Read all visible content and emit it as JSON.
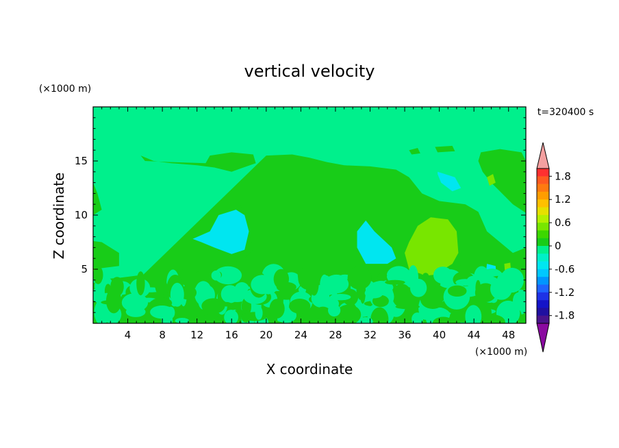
{
  "chart_data": {
    "type": "heatmap",
    "title": "vertical velocity",
    "xlabel": "X coordinate",
    "ylabel": "Z coordinate",
    "x_unit": "(×1000 m)",
    "y_unit": "(×1000 m)",
    "time_label": "t=320400 s",
    "xlim": [
      0,
      50
    ],
    "ylim": [
      0,
      20
    ],
    "x_ticks": [
      4,
      8,
      12,
      16,
      20,
      24,
      28,
      32,
      36,
      40,
      44,
      48
    ],
    "y_ticks": [
      5,
      10,
      15
    ],
    "colorbar": {
      "levels": [
        -2.0,
        -1.8,
        -1.6,
        -1.4,
        -1.2,
        -1.0,
        -0.8,
        -0.6,
        -0.4,
        -0.2,
        0,
        0.2,
        0.4,
        0.6,
        0.8,
        1.0,
        1.2,
        1.4,
        1.6,
        1.8,
        2.0
      ],
      "labels": [
        "1.8",
        "1.2",
        "0.6",
        "0",
        "-0.6",
        "-1.2",
        "-1.8"
      ],
      "label_values": [
        1.8,
        1.2,
        0.6,
        0,
        -0.6,
        -1.2,
        -1.8
      ],
      "colors_high_to_low": [
        "#ff3030",
        "#ff5a20",
        "#ff7a10",
        "#ff9d00",
        "#ffc000",
        "#e6e000",
        "#b4f000",
        "#78e600",
        "#3cd700",
        "#18cc18",
        "#00f08c",
        "#00f0c8",
        "#00e6f0",
        "#00c8ff",
        "#0096ff",
        "#1e64ff",
        "#1e32e6",
        "#1414c8",
        "#2010a0",
        "#4a148c"
      ],
      "over_color": "#f4a0a0",
      "under_color": "#8a0aa0"
    },
    "background_color": "#00f08c",
    "regions": [
      {
        "value": 0.1,
        "points": [
          [
            20,
            15.5
          ],
          [
            23,
            15.6
          ],
          [
            25,
            15.3
          ],
          [
            27,
            14.9
          ],
          [
            29,
            14.6
          ],
          [
            32,
            14.5
          ],
          [
            35,
            14.2
          ],
          [
            36.5,
            13.5
          ],
          [
            38,
            12.0
          ],
          [
            40,
            11.3
          ],
          [
            43,
            11.0
          ],
          [
            44.5,
            10.3
          ],
          [
            45.5,
            8.5
          ],
          [
            47,
            7.5
          ],
          [
            48.5,
            6.5
          ],
          [
            50,
            7.0
          ],
          [
            50,
            0
          ],
          [
            0,
            0
          ],
          [
            0,
            5.0
          ],
          [
            3,
            5.3
          ],
          [
            3,
            6.5
          ],
          [
            1,
            7.5
          ],
          [
            0,
            7.6
          ],
          [
            0,
            10
          ],
          [
            1,
            10.5
          ],
          [
            0.5,
            12
          ],
          [
            0,
            13
          ],
          [
            0,
            0
          ]
        ]
      },
      {
        "value": 0.1,
        "points": [
          [
            17,
            11.0
          ],
          [
            18,
            8.5
          ],
          [
            18.5,
            6.8
          ],
          [
            17.5,
            6.0
          ],
          [
            14,
            5.0
          ],
          [
            12,
            4.8
          ],
          [
            10,
            5.0
          ],
          [
            7,
            4.6
          ],
          [
            3,
            4.2
          ],
          [
            0,
            4.0
          ],
          [
            0,
            0
          ],
          [
            17,
            0
          ]
        ]
      },
      {
        "value": 0.1,
        "points": [
          [
            5.5,
            15.5
          ],
          [
            6,
            15.0
          ],
          [
            9,
            14.9
          ],
          [
            13,
            14.8
          ],
          [
            13.5,
            15.5
          ],
          [
            16,
            15.8
          ],
          [
            18.5,
            15.6
          ],
          [
            18.8,
            14.8
          ],
          [
            17,
            14.3
          ],
          [
            16,
            14.0
          ],
          [
            14,
            14.4
          ],
          [
            12,
            14.6
          ],
          [
            9,
            14.8
          ],
          [
            7,
            15.0
          ]
        ]
      },
      {
        "value": 0.1,
        "points": [
          [
            44.8,
            15.8
          ],
          [
            47,
            16.1
          ],
          [
            49.5,
            15.8
          ],
          [
            50,
            15.0
          ],
          [
            50,
            10.2
          ],
          [
            48.5,
            11.0
          ],
          [
            47,
            12.2
          ],
          [
            46,
            13.0
          ],
          [
            45,
            14.0
          ],
          [
            44.5,
            15.0
          ]
        ]
      },
      {
        "value": 0.1,
        "points": [
          [
            36.5,
            16.0
          ],
          [
            37.5,
            16.2
          ],
          [
            37.8,
            15.7
          ],
          [
            36.8,
            15.6
          ]
        ]
      },
      {
        "value": 0.1,
        "points": [
          [
            39.5,
            16.3
          ],
          [
            41.5,
            16.4
          ],
          [
            41.8,
            15.9
          ],
          [
            39.8,
            15.8
          ]
        ]
      },
      {
        "value": -0.5,
        "points": [
          [
            12.5,
            7.5
          ],
          [
            14,
            7.0
          ],
          [
            16,
            6.4
          ],
          [
            17.5,
            6.8
          ],
          [
            18,
            8.5
          ],
          [
            17.5,
            10.0
          ],
          [
            16.5,
            10.5
          ],
          [
            14.5,
            10.0
          ],
          [
            13.5,
            8.5
          ],
          [
            11.5,
            7.8
          ]
        ]
      },
      {
        "value": -0.5,
        "points": [
          [
            31.5,
            9.5
          ],
          [
            32.5,
            8.5
          ],
          [
            34.5,
            7.0
          ],
          [
            35,
            6.0
          ],
          [
            34,
            5.5
          ],
          [
            31.5,
            5.5
          ],
          [
            30.5,
            7.0
          ],
          [
            30.5,
            8.5
          ]
        ]
      },
      {
        "value": -0.5,
        "points": [
          [
            39.8,
            14.0
          ],
          [
            41.8,
            13.5
          ],
          [
            42.5,
            12.5
          ],
          [
            41.5,
            12.2
          ],
          [
            40.2,
            13.0
          ],
          [
            39.8,
            13.8
          ]
        ]
      },
      {
        "value": -0.5,
        "points": [
          [
            45.5,
            5.5
          ],
          [
            46.5,
            5.3
          ],
          [
            46.6,
            4.2
          ],
          [
            45.8,
            4.0
          ],
          [
            45.4,
            4.8
          ]
        ]
      },
      {
        "value": 0.5,
        "points": [
          [
            36.5,
            7.5
          ],
          [
            37.5,
            9.0
          ],
          [
            39,
            9.8
          ],
          [
            41,
            9.6
          ],
          [
            42,
            8.5
          ],
          [
            42.2,
            6.5
          ],
          [
            41.5,
            5.5
          ],
          [
            39.5,
            4.5
          ],
          [
            37.5,
            4.3
          ],
          [
            36.5,
            5.0
          ],
          [
            36,
            6.5
          ]
        ]
      },
      {
        "value": 0.5,
        "points": [
          [
            45.5,
            13.5
          ],
          [
            46.2,
            13.8
          ],
          [
            46.5,
            13.0
          ],
          [
            45.8,
            12.7
          ]
        ]
      },
      {
        "value": 0.5,
        "points": [
          [
            47.5,
            5.5
          ],
          [
            48.2,
            5.6
          ],
          [
            48.3,
            4.7
          ],
          [
            47.6,
            4.6
          ]
        ]
      },
      {
        "value": 0.5,
        "points": [
          [
            0,
            5.0
          ],
          [
            0.4,
            5.2
          ],
          [
            0.5,
            4.6
          ],
          [
            0,
            4.4
          ]
        ]
      }
    ],
    "noise_band": {
      "z_max": 4.5,
      "values": [
        0.1,
        -0.1
      ]
    }
  }
}
